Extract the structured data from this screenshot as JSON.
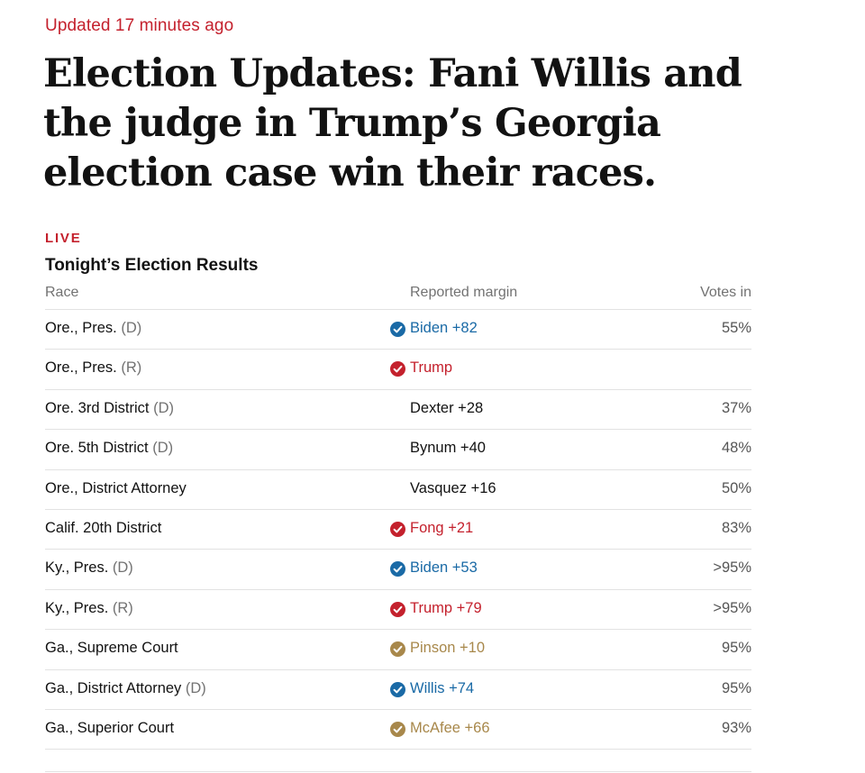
{
  "article": {
    "updated": "Updated 17 minutes ago",
    "headline": "Election Updates: Fani Willis and the judge in Trump’s Georgia election case win their races.",
    "live_label": "LIVE",
    "section_title": "Tonight’s Election Results"
  },
  "table": {
    "headers": {
      "race": "Race",
      "margin": "Reported margin",
      "votes": "Votes in"
    },
    "rows": [
      {
        "race": "Ore., Pres.",
        "party": "(D)",
        "margin": "Biden +82",
        "margin_color": "#1a6aa6",
        "winner": true,
        "votes": "55%"
      },
      {
        "race": "Ore., Pres.",
        "party": "(R)",
        "margin": "Trump",
        "margin_color": "#c4212d",
        "winner": true,
        "votes": ""
      },
      {
        "race": "Ore. 3rd District",
        "party": "(D)",
        "margin": "Dexter +28",
        "margin_color": "#121212",
        "winner": false,
        "votes": "37%"
      },
      {
        "race": "Ore. 5th District",
        "party": "(D)",
        "margin": "Bynum +40",
        "margin_color": "#121212",
        "winner": false,
        "votes": "48%"
      },
      {
        "race": "Ore., District Attorney",
        "party": "",
        "margin": "Vasquez +16",
        "margin_color": "#121212",
        "winner": false,
        "votes": "50%"
      },
      {
        "race": "Calif. 20th District",
        "party": "",
        "margin": "Fong +21",
        "margin_color": "#c4212d",
        "winner": true,
        "votes": "83%"
      },
      {
        "race": "Ky., Pres.",
        "party": "(D)",
        "margin": "Biden +53",
        "margin_color": "#1a6aa6",
        "winner": true,
        "votes": ">95%"
      },
      {
        "race": "Ky., Pres.",
        "party": "(R)",
        "margin": "Trump +79",
        "margin_color": "#c4212d",
        "winner": true,
        "votes": ">95%"
      },
      {
        "race": "Ga., Supreme Court",
        "party": "",
        "margin": "Pinson +10",
        "margin_color": "#a8884b",
        "winner": true,
        "votes": "95%"
      },
      {
        "race": "Ga., District Attorney",
        "party": "(D)",
        "margin": "Willis +74",
        "margin_color": "#1a6aa6",
        "winner": true,
        "votes": "95%"
      },
      {
        "race": "Ga., Superior Court",
        "party": "",
        "margin": "McAfee +66",
        "margin_color": "#a8884b",
        "winner": true,
        "votes": "93%"
      }
    ]
  },
  "colors": {
    "accent_red": "#c4212d",
    "dem_blue": "#1a6aa6",
    "nonpartisan_gold": "#a8884b",
    "text": "#121212",
    "muted": "#727272",
    "rule": "#e2e2e2"
  },
  "icons": {
    "winner": "check-circle-icon"
  }
}
